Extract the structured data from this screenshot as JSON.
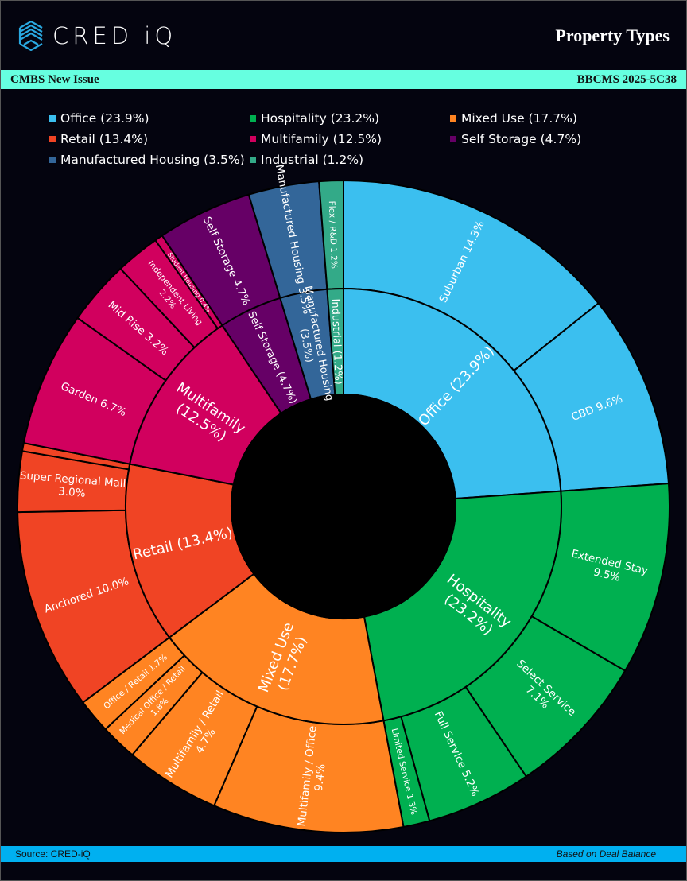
{
  "header": {
    "logo_text": "CRED iQ",
    "title": "Property Types"
  },
  "band": {
    "left": "CMBS New Issue",
    "right": "BBCMS 2025-5C38"
  },
  "footer": {
    "source": "Source:  CRED-iQ",
    "note": "Based on Deal Balance"
  },
  "chart_data": {
    "type": "sunburst",
    "title": "Property Types",
    "legend": [
      {
        "label": "Office (23.9%)",
        "color": "#3bbfef"
      },
      {
        "label": "Hospitality (23.2%)",
        "color": "#00b050"
      },
      {
        "label": "Mixed Use (17.7%)",
        "color": "#ff8422"
      },
      {
        "label": "Retail (13.4%)",
        "color": "#f04424"
      },
      {
        "label": "Multifamily (12.5%)",
        "color": "#d1005e"
      },
      {
        "label": "Self Storage (4.7%)",
        "color": "#660066"
      },
      {
        "label": "Manufactured Housing (3.5%)",
        "color": "#336699"
      },
      {
        "label": "Industrial (1.2%)",
        "color": "#33aa88"
      }
    ],
    "categories": [
      {
        "name": "Office",
        "label": "Office (23.9%)",
        "value": 23.9,
        "color": "#3bbfef",
        "children": [
          {
            "label": "Suburban 14.3%",
            "value": 14.3
          },
          {
            "label": "CBD 9.6%",
            "value": 9.6
          }
        ]
      },
      {
        "name": "Hospitality",
        "label": "Hospitality\n(23.2%)",
        "value": 23.2,
        "color": "#00b050",
        "children": [
          {
            "label": "Extended Stay\n9.5%",
            "value": 9.5
          },
          {
            "label": "Select Service\n7.1%",
            "value": 7.1
          },
          {
            "label": "Full Service 5.2%",
            "value": 5.2
          },
          {
            "label": "Limited Service 1.3%",
            "value": 1.3
          }
        ]
      },
      {
        "name": "Mixed Use",
        "label": "Mixed Use\n(17.7%)",
        "value": 17.7,
        "color": "#ff8422",
        "children": [
          {
            "label": "Multifamily / Office\n9.4%",
            "value": 9.4
          },
          {
            "label": "Multifamily / Retail\n4.7%",
            "value": 4.7
          },
          {
            "label": "Medical Office / Retail\n1.8%",
            "value": 1.8
          },
          {
            "label": "Office / Retail 1.7%",
            "value": 1.7
          }
        ]
      },
      {
        "name": "Retail",
        "label": "Retail (13.4%)",
        "value": 13.4,
        "color": "#f04424",
        "children": [
          {
            "label": "Anchored  10.0%",
            "value": 10.0
          },
          {
            "label": "Super Regional Mall\n3.0%",
            "value": 3.0
          },
          {
            "label": "",
            "value": 0.4
          }
        ]
      },
      {
        "name": "Multifamily",
        "label": "Multifamily\n(12.5%)",
        "value": 12.5,
        "color": "#d1005e",
        "children": [
          {
            "label": "Garden  6.7%",
            "value": 6.7
          },
          {
            "label": "Mid Rise  3.2%",
            "value": 3.2
          },
          {
            "label": "Independent Living\n2.2%",
            "value": 2.2
          },
          {
            "label": "Student Housing  0.4%",
            "value": 0.4
          }
        ]
      },
      {
        "name": "Self Storage",
        "label": "Self Storage (4.7%)",
        "value": 4.7,
        "color": "#660066",
        "children": [
          {
            "label": "Self Storage  4.7%",
            "value": 4.7
          }
        ]
      },
      {
        "name": "Manufactured Housing",
        "label": "Manufactured Housing\n(3.5%)",
        "value": 3.5,
        "color": "#336699",
        "children": [
          {
            "label": "Manufactured Housing 3.5%",
            "value": 3.5
          }
        ]
      },
      {
        "name": "Industrial",
        "label": "Industrial (1.2%)",
        "value": 1.2,
        "color": "#33aa88",
        "children": [
          {
            "label": "Flex / R&D  1.2%",
            "value": 1.2
          }
        ]
      }
    ]
  }
}
